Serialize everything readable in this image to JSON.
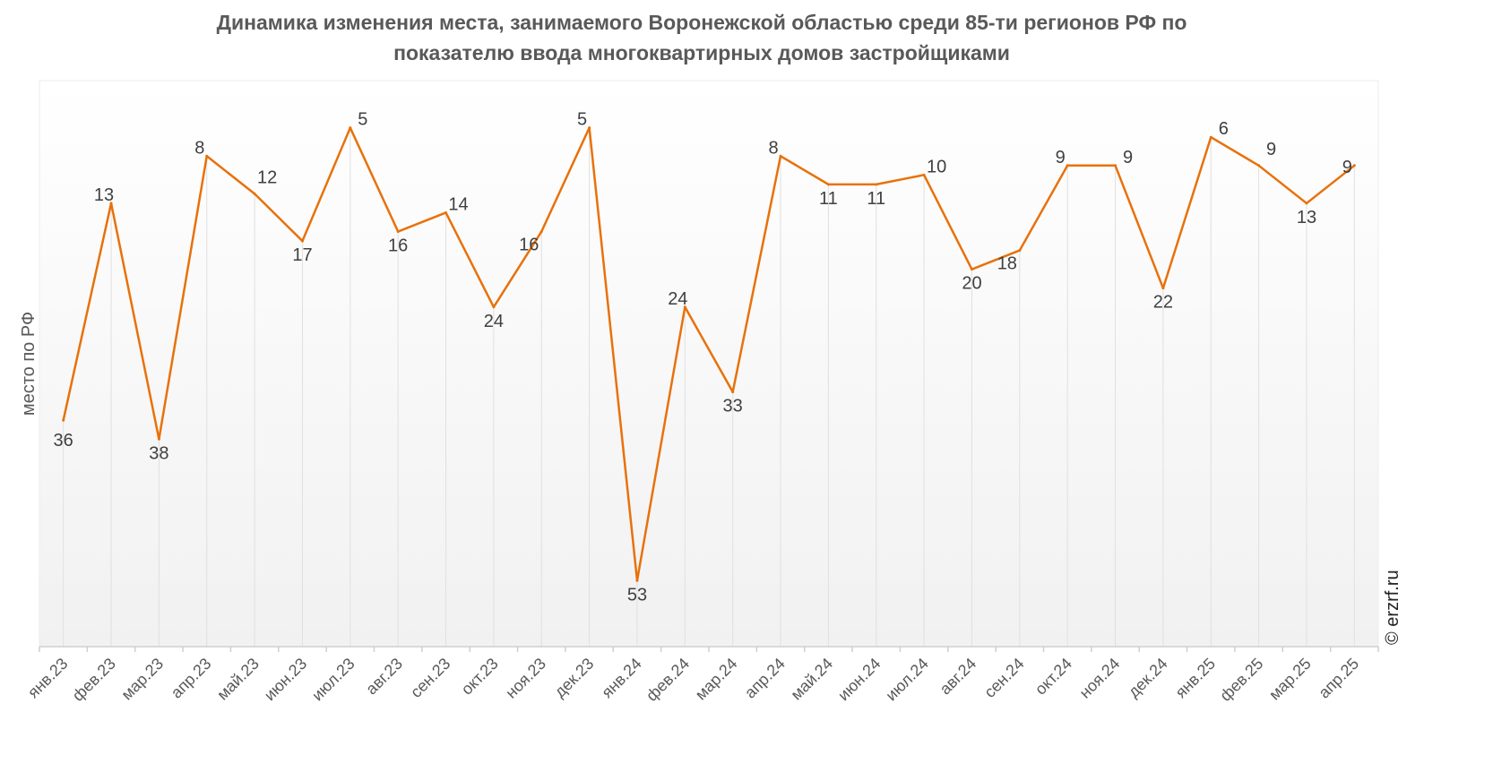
{
  "chart_data": {
    "type": "line",
    "title_line1": "Динамика изменения места, занимаемого Воронежской областью среди 85-ти регионов РФ по",
    "title_line2": "показателю ввода многоквартирных домов застройщиками",
    "ylabel": "место по РФ",
    "xlabel": "",
    "y_inverted": true,
    "ylim": [
      0,
      60
    ],
    "grid": "vertical",
    "legend": "none",
    "categories": [
      "янв.23",
      "фев.23",
      "мар.23",
      "апр.23",
      "май.23",
      "июн.23",
      "июл.23",
      "авг.23",
      "сен.23",
      "окт.23",
      "ноя.23",
      "дек.23",
      "янв.24",
      "фев.24",
      "мар.24",
      "апр.24",
      "май.24",
      "июн.24",
      "июл.24",
      "авг.24",
      "сен.24",
      "окт.24",
      "ноя.24",
      "дек.24",
      "янв.25",
      "фев.25",
      "мар.25",
      "апр.25"
    ],
    "series": [
      {
        "name": "место по РФ",
        "color": "#e8710a",
        "values": [
          36,
          13,
          38,
          8,
          12,
          17,
          5,
          16,
          14,
          24,
          16,
          5,
          53,
          24,
          33,
          8,
          11,
          11,
          10,
          20,
          18,
          9,
          9,
          22,
          6,
          9,
          13,
          9
        ]
      }
    ]
  },
  "credit": "© erzrf.ru"
}
